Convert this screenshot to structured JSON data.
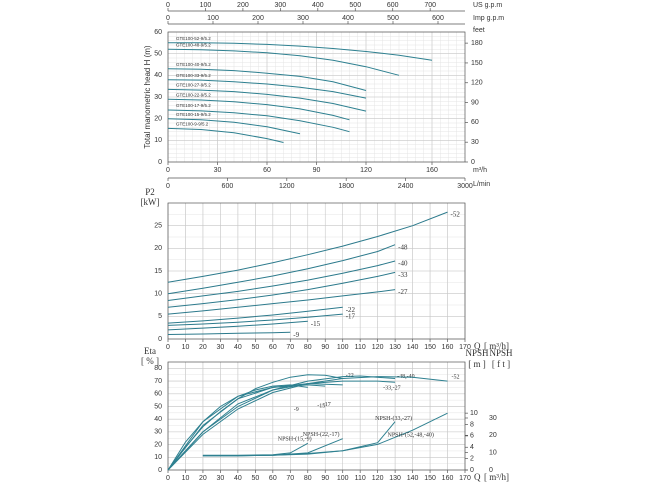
{
  "chart_data": [
    {
      "type": "line",
      "y_label": "Total manometric head H (m)",
      "xlim": [
        0,
        180
      ],
      "xticks": [
        0,
        30,
        60,
        90,
        120,
        160
      ],
      "x_unit": "m³/h",
      "ylim": [
        0,
        60
      ],
      "yticks": [
        0,
        10,
        20,
        30,
        40,
        50,
        60
      ],
      "x_lmin": {
        "unit": "L/min",
        "lim": [
          0,
          3000
        ],
        "ticks": [
          0,
          600,
          1200,
          1800,
          2400,
          3000
        ]
      },
      "x_usgpm": {
        "unit": "US g.p.m",
        "lim": [
          0,
          793
        ],
        "ticks": [
          0,
          100,
          200,
          300,
          400,
          500,
          600,
          700
        ]
      },
      "x_impgpm": {
        "unit": "Imp g.p.m",
        "lim": [
          0,
          660
        ],
        "ticks": [
          0,
          100,
          200,
          300,
          400,
          500,
          600
        ]
      },
      "y_feet": {
        "unit": "feet",
        "lim": [
          0,
          196.85
        ],
        "ticks": [
          0,
          30,
          60,
          90,
          120,
          150,
          180
        ]
      },
      "series": [
        {
          "name": "GTE100-52-9/5.2",
          "color": "#2e8090",
          "x": [
            0,
            20,
            40,
            60,
            80,
            100,
            120,
            140,
            160
          ],
          "values": [
            55,
            55,
            54.8,
            54.3,
            53.5,
            52.4,
            51,
            49.3,
            47
          ]
        },
        {
          "name": "GTE100-48-9/5.2",
          "color": "#2e8090",
          "x": [
            0,
            20,
            40,
            60,
            80,
            100,
            120,
            140
          ],
          "values": [
            52,
            51.8,
            51.3,
            50.4,
            49,
            47,
            44,
            40
          ]
        },
        {
          "name": "GTE100-40-9/5.2",
          "color": "#2e8090",
          "x": [
            0,
            20,
            40,
            60,
            80,
            100,
            120
          ],
          "values": [
            43,
            42.8,
            42.2,
            41,
            39.5,
            37,
            33
          ]
        },
        {
          "name": "GTE100-33-9/5.2",
          "color": "#2e8090",
          "x": [
            0,
            20,
            40,
            60,
            80,
            100,
            120
          ],
          "values": [
            38,
            37.8,
            37,
            36,
            34.5,
            32.5,
            29.5
          ]
        },
        {
          "name": "GTE100-27-9/5.2",
          "color": "#2e8090",
          "x": [
            0,
            20,
            40,
            60,
            80,
            100,
            120
          ],
          "values": [
            33.5,
            33.2,
            32.5,
            31.2,
            29.5,
            27,
            23.5
          ]
        },
        {
          "name": "GTE100-22-9/5.2",
          "color": "#2e8090",
          "x": [
            0,
            20,
            40,
            60,
            80,
            100,
            110
          ],
          "values": [
            29,
            28.6,
            27.8,
            26.5,
            24.5,
            21.5,
            19.5
          ]
        },
        {
          "name": "GTE100-17-9/5.2",
          "color": "#2e8090",
          "x": [
            0,
            20,
            40,
            60,
            80,
            100,
            110
          ],
          "values": [
            24,
            23.6,
            22.7,
            21.3,
            19,
            16,
            14
          ]
        },
        {
          "name": "GTE100-15-9/5.2",
          "color": "#2e8090",
          "x": [
            0,
            20,
            40,
            60,
            80
          ],
          "values": [
            20,
            19.5,
            18.3,
            16.3,
            13
          ]
        },
        {
          "name": "GTE100-9-9/5.2",
          "color": "#2e8090",
          "x": [
            0,
            20,
            40,
            60,
            70
          ],
          "values": [
            15.5,
            15,
            13.5,
            10.8,
            9
          ]
        }
      ]
    },
    {
      "type": "line",
      "y_label": "P2",
      "y_unit": "[kW]",
      "x_label": "Q",
      "x_unit": "[ m³/h]",
      "xlim": [
        0,
        170
      ],
      "xticks": [
        0,
        10,
        20,
        30,
        40,
        50,
        60,
        70,
        80,
        90,
        100,
        110,
        120,
        130,
        140,
        150,
        160,
        170
      ],
      "ylim": [
        0,
        30
      ],
      "yticks": [
        0,
        5,
        10,
        15,
        20,
        25
      ],
      "series": [
        {
          "name": "-52",
          "color": "#2c7a8c",
          "x": [
            0,
            20,
            40,
            60,
            80,
            100,
            120,
            140,
            160
          ],
          "values": [
            12.5,
            13.8,
            15.2,
            16.8,
            18.6,
            20.5,
            22.6,
            25,
            28
          ]
        },
        {
          "name": "-48",
          "color": "#2c7a8c",
          "x": [
            0,
            20,
            40,
            60,
            80,
            100,
            120,
            130
          ],
          "values": [
            10,
            11.2,
            12.5,
            13.9,
            15.5,
            17.3,
            19.3,
            20.8
          ]
        },
        {
          "name": "-40",
          "color": "#2c7a8c",
          "x": [
            0,
            20,
            40,
            60,
            80,
            100,
            120,
            130
          ],
          "values": [
            8.5,
            9.5,
            10.5,
            11.7,
            13,
            14.5,
            16.2,
            17.2
          ]
        },
        {
          "name": "-33",
          "color": "#2c7a8c",
          "x": [
            0,
            20,
            40,
            60,
            80,
            100,
            120,
            130
          ],
          "values": [
            7,
            7.8,
            8.7,
            9.7,
            10.9,
            12.3,
            13.8,
            14.7
          ]
        },
        {
          "name": "-27",
          "color": "#2c7a8c",
          "x": [
            0,
            20,
            40,
            60,
            80,
            100,
            120,
            130
          ],
          "values": [
            5.5,
            6.2,
            7,
            7.8,
            8.6,
            9.5,
            10.4,
            10.9
          ]
        },
        {
          "name": "-22",
          "color": "#2c7a8c",
          "x": [
            0,
            20,
            40,
            60,
            80,
            100
          ],
          "values": [
            3.5,
            4,
            4.6,
            5.3,
            6.1,
            7
          ]
        },
        {
          "name": "-17",
          "color": "#2c7a8c",
          "x": [
            0,
            20,
            40,
            60,
            80,
            100
          ],
          "values": [
            3,
            3.3,
            3.7,
            4.2,
            4.8,
            5.5
          ]
        },
        {
          "name": "-15",
          "color": "#2c7a8c",
          "x": [
            0,
            20,
            40,
            60,
            80
          ],
          "values": [
            2,
            2.4,
            2.8,
            3.3,
            3.9
          ]
        },
        {
          "name": "-9",
          "color": "#2c7a8c",
          "x": [
            0,
            20,
            40,
            60,
            70
          ],
          "values": [
            1,
            1.1,
            1.25,
            1.4,
            1.5
          ]
        }
      ]
    },
    {
      "type": "line",
      "y_label": "Eta",
      "y_unit": "[ % ]",
      "x_label": "Q",
      "x_unit": "[ m³/h]",
      "xlim": [
        0,
        170
      ],
      "xticks": [
        0,
        10,
        20,
        30,
        40,
        50,
        60,
        70,
        80,
        90,
        100,
        110,
        120,
        130,
        140,
        150,
        160,
        170
      ],
      "ylim": [
        0,
        85
      ],
      "yticks": [
        0,
        10,
        20,
        30,
        40,
        50,
        60,
        70,
        80
      ],
      "y2_label": "NPSH",
      "y2_unit": "[ m ]",
      "y2lim": [
        0,
        19
      ],
      "y2ticks": [
        0,
        2,
        4,
        6,
        8,
        10
      ],
      "y3": {
        "label": "NPSH",
        "unit": "[ f t ]",
        "lim": [
          0,
          62.3
        ],
        "ticks": [
          0,
          10,
          20,
          30
        ]
      },
      "series": [
        {
          "name": "-22",
          "color": "#2e8090",
          "x": [
            0,
            10,
            20,
            30,
            40,
            50,
            60,
            70,
            80,
            90,
            100
          ],
          "values": [
            0,
            18,
            34,
            46,
            56,
            64,
            69,
            73,
            75,
            74.5,
            72
          ]
        },
        {
          "name": "-48,-40",
          "color": "#2e8090",
          "x": [
            0,
            20,
            40,
            60,
            80,
            100,
            110,
            130
          ],
          "values": [
            0,
            30,
            50,
            63,
            70,
            73.5,
            74,
            72
          ]
        },
        {
          "name": "-52",
          "color": "#2e8090",
          "x": [
            0,
            20,
            40,
            60,
            80,
            100,
            120,
            140,
            160
          ],
          "values": [
            0,
            28,
            48,
            61,
            68,
            72,
            73.5,
            73,
            70
          ]
        },
        {
          "name": "-33,-27",
          "color": "#2e8090",
          "x": [
            0,
            20,
            40,
            60,
            80,
            100,
            120,
            130
          ],
          "values": [
            0,
            30,
            52,
            63,
            68,
            70,
            70,
            69
          ]
        },
        {
          "name": "-9",
          "color": "#2e8090",
          "x": [
            0,
            10,
            20,
            30,
            40,
            50,
            60,
            70,
            80
          ],
          "values": [
            0,
            22,
            38,
            50,
            58,
            63,
            66,
            67,
            65
          ]
        },
        {
          "name": "-15",
          "color": "#2e8090",
          "x": [
            0,
            20,
            40,
            60,
            80,
            90
          ],
          "values": [
            0,
            38,
            58,
            65,
            67,
            66
          ]
        },
        {
          "name": "-17",
          "color": "#2e8090",
          "x": [
            0,
            20,
            40,
            60,
            80,
            100
          ],
          "values": [
            0,
            35,
            56,
            65,
            68,
            67
          ]
        },
        {
          "name": "NPSH-(15,-9)",
          "color": "#2e8090",
          "axis": "y2",
          "x": [
            20,
            40,
            60,
            70,
            80
          ],
          "values": [
            2.6,
            2.6,
            2.7,
            3,
            4.7
          ]
        },
        {
          "name": "NPSH-(22,-17)",
          "color": "#2e8090",
          "axis": "y2",
          "x": [
            20,
            40,
            60,
            80,
            100
          ],
          "values": [
            2.5,
            2.5,
            2.6,
            3,
            5.5
          ]
        },
        {
          "name": "NPSH-(33,-27)",
          "color": "#2e8090",
          "axis": "y2",
          "x": [
            20,
            40,
            60,
            80,
            100,
            120,
            130
          ],
          "values": [
            2.5,
            2.5,
            2.6,
            2.8,
            3.4,
            4.8,
            8.5
          ]
        },
        {
          "name": "NPSH-(52,-48,-40)",
          "color": "#2e8090",
          "axis": "y2",
          "x": [
            20,
            40,
            60,
            80,
            100,
            120,
            140,
            160
          ],
          "values": [
            2.5,
            2.5,
            2.6,
            2.9,
            3.4,
            4.5,
            7,
            10
          ]
        }
      ]
    }
  ]
}
